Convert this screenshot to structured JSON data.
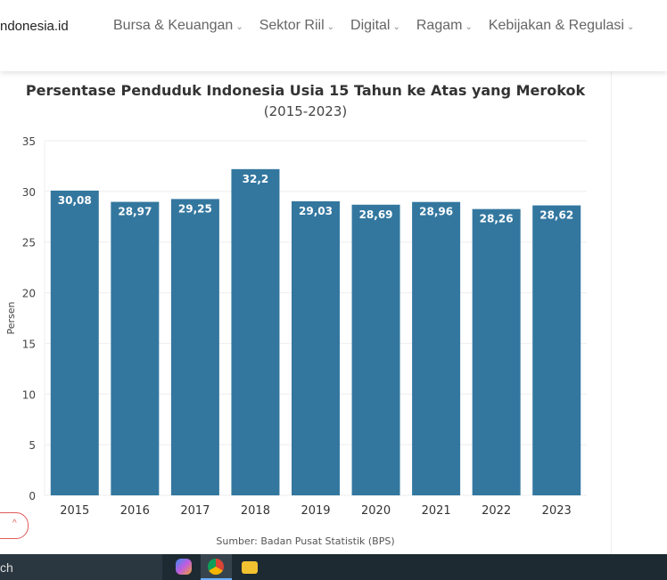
{
  "header": {
    "logo": "ndonesia.id",
    "nav": [
      {
        "label": "Bursa & Keuangan"
      },
      {
        "label": "Sektor Riil"
      },
      {
        "label": "Digital"
      },
      {
        "label": "Ragam"
      },
      {
        "label": "Kebijakan & Regulasi"
      }
    ]
  },
  "chart_data": {
    "type": "bar",
    "title": "Persentase Penduduk Indonesia Usia 15 Tahun ke Atas yang Merokok",
    "subtitle": "(2015-2023)",
    "ylabel": "Persen",
    "xlabel": "",
    "ylim": [
      0,
      35
    ],
    "yticks": [
      0,
      5,
      10,
      15,
      20,
      25,
      30,
      35
    ],
    "categories": [
      "2015",
      "2016",
      "2017",
      "2018",
      "2019",
      "2020",
      "2021",
      "2022",
      "2023"
    ],
    "values": [
      30.08,
      28.97,
      29.25,
      32.2,
      29.03,
      28.69,
      28.96,
      28.26,
      28.62
    ],
    "labels": [
      "30,08",
      "28,97",
      "29,25",
      "32,2",
      "29,03",
      "28,69",
      "28,96",
      "28,26",
      "28,62"
    ],
    "bar_color": "#33779f",
    "grid": true,
    "source": "Sumber: Badan Pusat Statistik (BPS)"
  },
  "taskbar": {
    "search_text": "ch",
    "icons": [
      "copilot-icon",
      "chrome-icon",
      "file-explorer-icon"
    ]
  }
}
